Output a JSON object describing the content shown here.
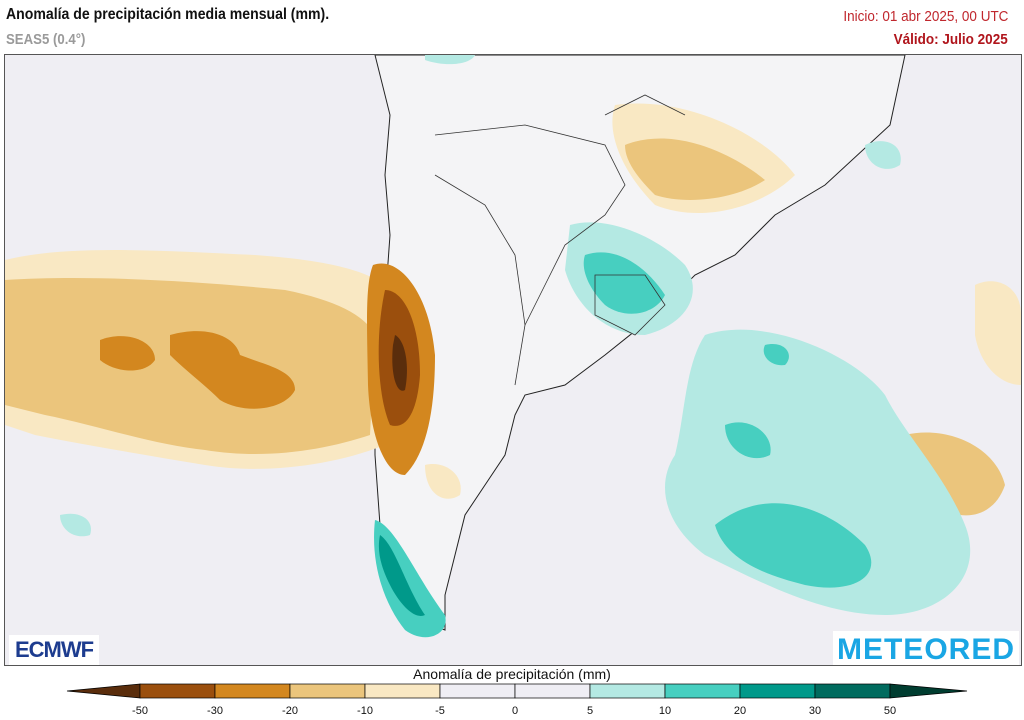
{
  "header": {
    "title": "Anomalía de precipitación media mensual (mm).",
    "subtitle": "SEAS5 (0.4°)",
    "init": "Inicio: 01 abr 2025, 00 UTC",
    "valid": "Válido: Julio 2025"
  },
  "logos": {
    "left": "ECMWF",
    "right": "METEORED"
  },
  "legend": {
    "title": "Anomalía de precipitación (mm)",
    "ticks": [
      "-50",
      "-30",
      "-20",
      "-10",
      "-5",
      "0",
      "5",
      "10",
      "20",
      "30",
      "50"
    ],
    "colors": {
      "below_-50": "#5a2d0c",
      "-50_-30": "#9b4f0d",
      "-30_-20": "#d3871f",
      "-20_-10": "#ebc57c",
      "-10_-5": "#f9e8c3",
      "-5_0": "#efeef4",
      "0_5": "#efeef4",
      "5_10": "#b4e9e3",
      "10_20": "#47cfc0",
      "20_30": "#00998a",
      "30_50": "#006b5e",
      "above_50": "#003d30"
    }
  }
}
